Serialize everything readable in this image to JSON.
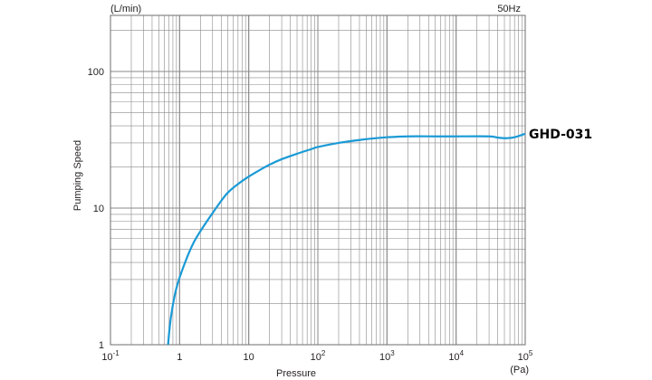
{
  "chart_data": {
    "type": "line",
    "title": "",
    "xlabel": "Pressure",
    "ylabel": "Pumping Speed",
    "x_unit": "(Pa)",
    "y_unit": "(L/min)",
    "frequency_label": "50Hz",
    "x_scale": "log",
    "y_scale": "log",
    "xlim": [
      0.1,
      100000
    ],
    "ylim": [
      1,
      300
    ],
    "grid": true,
    "x_ticks": [
      {
        "value": 0.1,
        "base": "10",
        "exp": "-1"
      },
      {
        "value": 1,
        "base": "1",
        "exp": ""
      },
      {
        "value": 10,
        "base": "10",
        "exp": ""
      },
      {
        "value": 100,
        "base": "10",
        "exp": "2"
      },
      {
        "value": 1000,
        "base": "10",
        "exp": "3"
      },
      {
        "value": 10000,
        "base": "10",
        "exp": "4"
      },
      {
        "value": 100000,
        "base": "10",
        "exp": "5"
      }
    ],
    "y_ticks": [
      {
        "value": 1,
        "label": "1"
      },
      {
        "value": 10,
        "label": "10"
      },
      {
        "value": 100,
        "label": "100"
      }
    ],
    "series": [
      {
        "name": "GHD-031",
        "color": "#1a9ad6",
        "points": [
          [
            0.68,
            1.0
          ],
          [
            0.75,
            1.6
          ],
          [
            0.9,
            2.6
          ],
          [
            1.2,
            4.0
          ],
          [
            1.6,
            5.6
          ],
          [
            2.2,
            7.3
          ],
          [
            3.0,
            9.2
          ],
          [
            4.0,
            11.3
          ],
          [
            5.0,
            13.0
          ],
          [
            7.0,
            15.0
          ],
          [
            10.0,
            17.0
          ],
          [
            15.0,
            19.2
          ],
          [
            20.0,
            20.8
          ],
          [
            30.0,
            22.8
          ],
          [
            50.0,
            25.0
          ],
          [
            80.0,
            27.0
          ],
          [
            100.0,
            28.0
          ],
          [
            200.0,
            30.0
          ],
          [
            400.0,
            31.5
          ],
          [
            700.0,
            32.5
          ],
          [
            1000.0,
            33.0
          ],
          [
            2000.0,
            33.5
          ],
          [
            5000.0,
            33.5
          ],
          [
            10000.0,
            33.5
          ],
          [
            30000.0,
            33.5
          ],
          [
            40000.0,
            32.8
          ],
          [
            55000.0,
            32.5
          ],
          [
            70000.0,
            33.0
          ],
          [
            100000.0,
            35.0
          ]
        ]
      }
    ]
  }
}
